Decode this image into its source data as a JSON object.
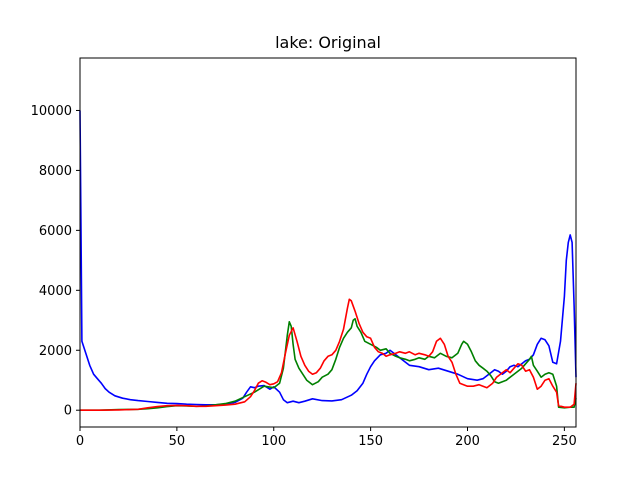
{
  "chart_data": {
    "type": "line",
    "title": "lake: Original",
    "xlabel": "",
    "ylabel": "",
    "xlim": [
      0,
      256
    ],
    "ylim": [
      -560,
      11750
    ],
    "xticks": [
      0,
      50,
      100,
      150,
      200,
      250
    ],
    "yticks": [
      0,
      2000,
      4000,
      6000,
      8000,
      10000
    ],
    "grid": false,
    "legend": "none",
    "series": [
      {
        "color": "#0000ff",
        "points": [
          [
            0,
            10000
          ],
          [
            0.5,
            6000
          ],
          [
            1,
            2300
          ],
          [
            3,
            1900
          ],
          [
            5,
            1500
          ],
          [
            7,
            1200
          ],
          [
            9,
            1050
          ],
          [
            11,
            900
          ],
          [
            13,
            720
          ],
          [
            15,
            600
          ],
          [
            18,
            480
          ],
          [
            22,
            400
          ],
          [
            26,
            350
          ],
          [
            30,
            320
          ],
          [
            35,
            290
          ],
          [
            40,
            260
          ],
          [
            45,
            230
          ],
          [
            50,
            220
          ],
          [
            55,
            200
          ],
          [
            60,
            190
          ],
          [
            65,
            180
          ],
          [
            70,
            180
          ],
          [
            75,
            200
          ],
          [
            80,
            260
          ],
          [
            84,
            400
          ],
          [
            86,
            600
          ],
          [
            88,
            780
          ],
          [
            90,
            750
          ],
          [
            92,
            800
          ],
          [
            95,
            820
          ],
          [
            98,
            700
          ],
          [
            100,
            780
          ],
          [
            103,
            600
          ],
          [
            105,
            350
          ],
          [
            107,
            250
          ],
          [
            110,
            300
          ],
          [
            113,
            250
          ],
          [
            116,
            300
          ],
          [
            120,
            380
          ],
          [
            125,
            320
          ],
          [
            130,
            310
          ],
          [
            135,
            350
          ],
          [
            140,
            500
          ],
          [
            143,
            650
          ],
          [
            146,
            900
          ],
          [
            148,
            1200
          ],
          [
            150,
            1450
          ],
          [
            152,
            1650
          ],
          [
            155,
            1850
          ],
          [
            158,
            1900
          ],
          [
            160,
            2000
          ],
          [
            162,
            1900
          ],
          [
            165,
            1750
          ],
          [
            168,
            1600
          ],
          [
            170,
            1500
          ],
          [
            175,
            1450
          ],
          [
            180,
            1350
          ],
          [
            185,
            1400
          ],
          [
            190,
            1300
          ],
          [
            195,
            1200
          ],
          [
            200,
            1050
          ],
          [
            205,
            1000
          ],
          [
            208,
            1050
          ],
          [
            210,
            1150
          ],
          [
            212,
            1250
          ],
          [
            214,
            1350
          ],
          [
            216,
            1300
          ],
          [
            218,
            1200
          ],
          [
            220,
            1300
          ],
          [
            222,
            1450
          ],
          [
            224,
            1500
          ],
          [
            226,
            1450
          ],
          [
            228,
            1550
          ],
          [
            230,
            1650
          ],
          [
            232,
            1700
          ],
          [
            234,
            1850
          ],
          [
            236,
            2200
          ],
          [
            238,
            2400
          ],
          [
            240,
            2350
          ],
          [
            242,
            2150
          ],
          [
            244,
            1600
          ],
          [
            246,
            1550
          ],
          [
            248,
            2300
          ],
          [
            250,
            3800
          ],
          [
            251,
            5000
          ],
          [
            252,
            5600
          ],
          [
            253,
            5850
          ],
          [
            254,
            5600
          ],
          [
            255,
            3500
          ],
          [
            256,
            1100
          ]
        ]
      },
      {
        "color": "#008000",
        "points": [
          [
            0,
            0
          ],
          [
            10,
            0
          ],
          [
            20,
            20
          ],
          [
            30,
            30
          ],
          [
            35,
            50
          ],
          [
            40,
            80
          ],
          [
            45,
            120
          ],
          [
            50,
            150
          ],
          [
            55,
            140
          ],
          [
            60,
            130
          ],
          [
            65,
            140
          ],
          [
            70,
            180
          ],
          [
            75,
            220
          ],
          [
            80,
            300
          ],
          [
            85,
            450
          ],
          [
            90,
            600
          ],
          [
            95,
            800
          ],
          [
            100,
            750
          ],
          [
            103,
            900
          ],
          [
            105,
            1400
          ],
          [
            107,
            2500
          ],
          [
            108,
            2950
          ],
          [
            109,
            2800
          ],
          [
            110,
            2200
          ],
          [
            111,
            1700
          ],
          [
            113,
            1400
          ],
          [
            115,
            1200
          ],
          [
            117,
            1000
          ],
          [
            120,
            850
          ],
          [
            123,
            950
          ],
          [
            125,
            1100
          ],
          [
            128,
            1200
          ],
          [
            130,
            1350
          ],
          [
            132,
            1700
          ],
          [
            134,
            2100
          ],
          [
            136,
            2400
          ],
          [
            138,
            2600
          ],
          [
            140,
            2750
          ],
          [
            141,
            3000
          ],
          [
            142,
            3050
          ],
          [
            143,
            2800
          ],
          [
            145,
            2600
          ],
          [
            147,
            2300
          ],
          [
            150,
            2200
          ],
          [
            153,
            2100
          ],
          [
            155,
            2000
          ],
          [
            158,
            2050
          ],
          [
            160,
            1900
          ],
          [
            163,
            1800
          ],
          [
            165,
            1750
          ],
          [
            168,
            1700
          ],
          [
            170,
            1650
          ],
          [
            173,
            1700
          ],
          [
            175,
            1750
          ],
          [
            178,
            1700
          ],
          [
            180,
            1800
          ],
          [
            183,
            1750
          ],
          [
            186,
            1900
          ],
          [
            189,
            1800
          ],
          [
            192,
            1750
          ],
          [
            195,
            1900
          ],
          [
            197,
            2200
          ],
          [
            198,
            2300
          ],
          [
            200,
            2200
          ],
          [
            202,
            1950
          ],
          [
            204,
            1650
          ],
          [
            206,
            1500
          ],
          [
            208,
            1400
          ],
          [
            210,
            1300
          ],
          [
            212,
            1150
          ],
          [
            214,
            950
          ],
          [
            216,
            900
          ],
          [
            218,
            950
          ],
          [
            220,
            1000
          ],
          [
            222,
            1100
          ],
          [
            224,
            1200
          ],
          [
            226,
            1300
          ],
          [
            228,
            1400
          ],
          [
            230,
            1550
          ],
          [
            232,
            1700
          ],
          [
            233,
            1800
          ],
          [
            234,
            1500
          ],
          [
            236,
            1300
          ],
          [
            238,
            1100
          ],
          [
            240,
            1200
          ],
          [
            242,
            1250
          ],
          [
            244,
            1200
          ],
          [
            246,
            800
          ],
          [
            247,
            100
          ],
          [
            250,
            80
          ],
          [
            253,
            100
          ],
          [
            255,
            100
          ],
          [
            256,
            400
          ]
        ]
      },
      {
        "color": "#ff0000",
        "points": [
          [
            0,
            0
          ],
          [
            10,
            0
          ],
          [
            20,
            10
          ],
          [
            30,
            30
          ],
          [
            35,
            80
          ],
          [
            40,
            120
          ],
          [
            45,
            150
          ],
          [
            50,
            160
          ],
          [
            55,
            150
          ],
          [
            60,
            130
          ],
          [
            65,
            130
          ],
          [
            70,
            150
          ],
          [
            75,
            170
          ],
          [
            80,
            200
          ],
          [
            85,
            280
          ],
          [
            88,
            450
          ],
          [
            90,
            650
          ],
          [
            92,
            900
          ],
          [
            94,
            980
          ],
          [
            96,
            930
          ],
          [
            98,
            850
          ],
          [
            100,
            880
          ],
          [
            102,
            950
          ],
          [
            104,
            1250
          ],
          [
            106,
            1900
          ],
          [
            108,
            2500
          ],
          [
            110,
            2750
          ],
          [
            112,
            2300
          ],
          [
            114,
            1800
          ],
          [
            116,
            1500
          ],
          [
            118,
            1300
          ],
          [
            120,
            1200
          ],
          [
            122,
            1250
          ],
          [
            124,
            1400
          ],
          [
            126,
            1650
          ],
          [
            128,
            1800
          ],
          [
            130,
            1850
          ],
          [
            132,
            2000
          ],
          [
            134,
            2300
          ],
          [
            136,
            2700
          ],
          [
            138,
            3400
          ],
          [
            139,
            3700
          ],
          [
            140,
            3650
          ],
          [
            142,
            3300
          ],
          [
            144,
            2900
          ],
          [
            146,
            2600
          ],
          [
            148,
            2450
          ],
          [
            150,
            2400
          ],
          [
            152,
            2100
          ],
          [
            154,
            1950
          ],
          [
            156,
            1900
          ],
          [
            158,
            1800
          ],
          [
            160,
            1850
          ],
          [
            163,
            1900
          ],
          [
            165,
            1950
          ],
          [
            168,
            1900
          ],
          [
            170,
            1950
          ],
          [
            173,
            1850
          ],
          [
            175,
            1900
          ],
          [
            178,
            1850
          ],
          [
            180,
            1800
          ],
          [
            182,
            1950
          ],
          [
            184,
            2300
          ],
          [
            186,
            2400
          ],
          [
            188,
            2200
          ],
          [
            190,
            1800
          ],
          [
            192,
            1600
          ],
          [
            194,
            1200
          ],
          [
            196,
            900
          ],
          [
            198,
            850
          ],
          [
            200,
            800
          ],
          [
            203,
            800
          ],
          [
            206,
            850
          ],
          [
            208,
            800
          ],
          [
            210,
            750
          ],
          [
            213,
            900
          ],
          [
            215,
            1100
          ],
          [
            217,
            1200
          ],
          [
            220,
            1350
          ],
          [
            222,
            1250
          ],
          [
            224,
            1400
          ],
          [
            226,
            1550
          ],
          [
            228,
            1500
          ],
          [
            230,
            1300
          ],
          [
            232,
            1350
          ],
          [
            234,
            1100
          ],
          [
            236,
            700
          ],
          [
            238,
            800
          ],
          [
            240,
            1000
          ],
          [
            242,
            1050
          ],
          [
            244,
            800
          ],
          [
            246,
            600
          ],
          [
            247,
            150
          ],
          [
            250,
            100
          ],
          [
            253,
            100
          ],
          [
            255,
            200
          ],
          [
            256,
            900
          ]
        ]
      }
    ]
  }
}
